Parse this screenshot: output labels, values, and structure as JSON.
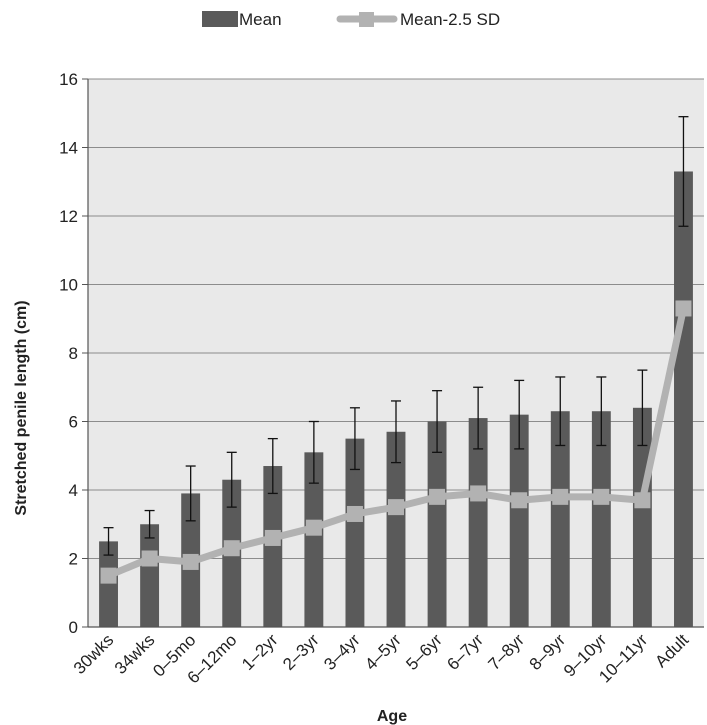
{
  "chart_data": {
    "type": "bar",
    "title": "",
    "xlabel": "Age",
    "ylabel": "Stretched penile length (cm)",
    "ylim": [
      0,
      16
    ],
    "yticks": [
      0,
      2,
      4,
      6,
      8,
      10,
      12,
      14,
      16
    ],
    "grid": true,
    "legend_position": "top",
    "categories": [
      "30wks",
      "34wks",
      "0–5mo",
      "6–12mo",
      "1–2yr",
      "2–3yr",
      "3–4yr",
      "4–5yr",
      "5–6yr",
      "6–7yr",
      "7–8yr",
      "8–9yr",
      "9–10yr",
      "10–11yr",
      "Adult"
    ],
    "series": [
      {
        "name": "Mean",
        "kind": "bar",
        "color": "#5a5a5a",
        "values": [
          2.5,
          3.0,
          3.9,
          4.3,
          4.7,
          5.1,
          5.5,
          5.7,
          6.0,
          6.1,
          6.2,
          6.3,
          6.3,
          6.4,
          13.3
        ],
        "error": [
          0.4,
          0.4,
          0.8,
          0.8,
          0.8,
          0.9,
          0.9,
          0.9,
          0.9,
          0.9,
          1.0,
          1.0,
          1.0,
          1.1,
          1.6
        ]
      },
      {
        "name": "Mean-2.5 SD",
        "kind": "line",
        "color": "#b2b2b2",
        "values": [
          1.5,
          2.0,
          1.9,
          2.3,
          2.6,
          2.9,
          3.3,
          3.5,
          3.8,
          3.9,
          3.7,
          3.8,
          3.8,
          3.7,
          9.3
        ]
      }
    ],
    "colors": {
      "plot_background": "#e9e9e9",
      "gridline": "#8c8c8c",
      "axis": "#555555",
      "error_bar": "#111111"
    }
  }
}
